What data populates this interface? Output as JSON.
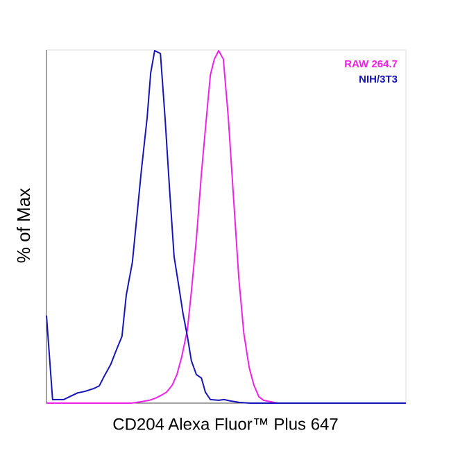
{
  "chart_data": {
    "type": "line",
    "x_label": "CD204 Alexa Fluor™ Plus 647",
    "y_label": "% of Max",
    "xlim": [
      0,
      100
    ],
    "ylim": [
      0,
      100
    ],
    "legend": "top-right",
    "series": [
      {
        "name": "RAW 264.7",
        "color": "#f020e8",
        "x": [
          0,
          23.7,
          26.3,
          28.6,
          30.3,
          31.9,
          33.4,
          35.0,
          36.3,
          37.6,
          39.2,
          40.3,
          41.7,
          43.1,
          44.4,
          45.6,
          46.7,
          47.9,
          49.2,
          50.6,
          52.1,
          53.5,
          54.9,
          56.4,
          57.7,
          59.1,
          60.4,
          62.4,
          64.3,
          100
        ],
        "values": [
          0,
          0,
          0.4,
          0.8,
          1.4,
          2.2,
          3.1,
          5.1,
          8.1,
          13.0,
          20.8,
          31.6,
          46.4,
          65.0,
          79.8,
          92.9,
          97.4,
          99.8,
          97.4,
          80.7,
          57.2,
          35.6,
          19.8,
          10.0,
          5.1,
          1.8,
          0.8,
          0.4,
          0,
          0
        ]
      },
      {
        "name": "NIH/3T3",
        "color": "#1414b8",
        "x": [
          0,
          1.7,
          4.8,
          6.4,
          8.7,
          10.6,
          13.1,
          14.7,
          16.0,
          17.9,
          19.3,
          21.0,
          22.2,
          23.9,
          25.1,
          26.4,
          28.0,
          29.0,
          30.1,
          31.7,
          33.0,
          34.2,
          35.5,
          36.9,
          38.0,
          39.2,
          40.3,
          41.7,
          43.1,
          44.2,
          45.6,
          47.9,
          49.4,
          51.2,
          53.7,
          56.6,
          100
        ],
        "values": [
          24.8,
          1.0,
          1.0,
          1.8,
          2.9,
          3.3,
          4.1,
          4.9,
          7.5,
          11.0,
          14.7,
          18.9,
          30.6,
          39.9,
          52.3,
          66.0,
          80.7,
          93.5,
          99.8,
          99.0,
          80.7,
          61.1,
          41.5,
          32.6,
          25.3,
          18.9,
          12.0,
          8.1,
          7.1,
          3.1,
          1.0,
          0.8,
          1.0,
          0.6,
          0.2,
          0,
          0
        ]
      }
    ]
  }
}
